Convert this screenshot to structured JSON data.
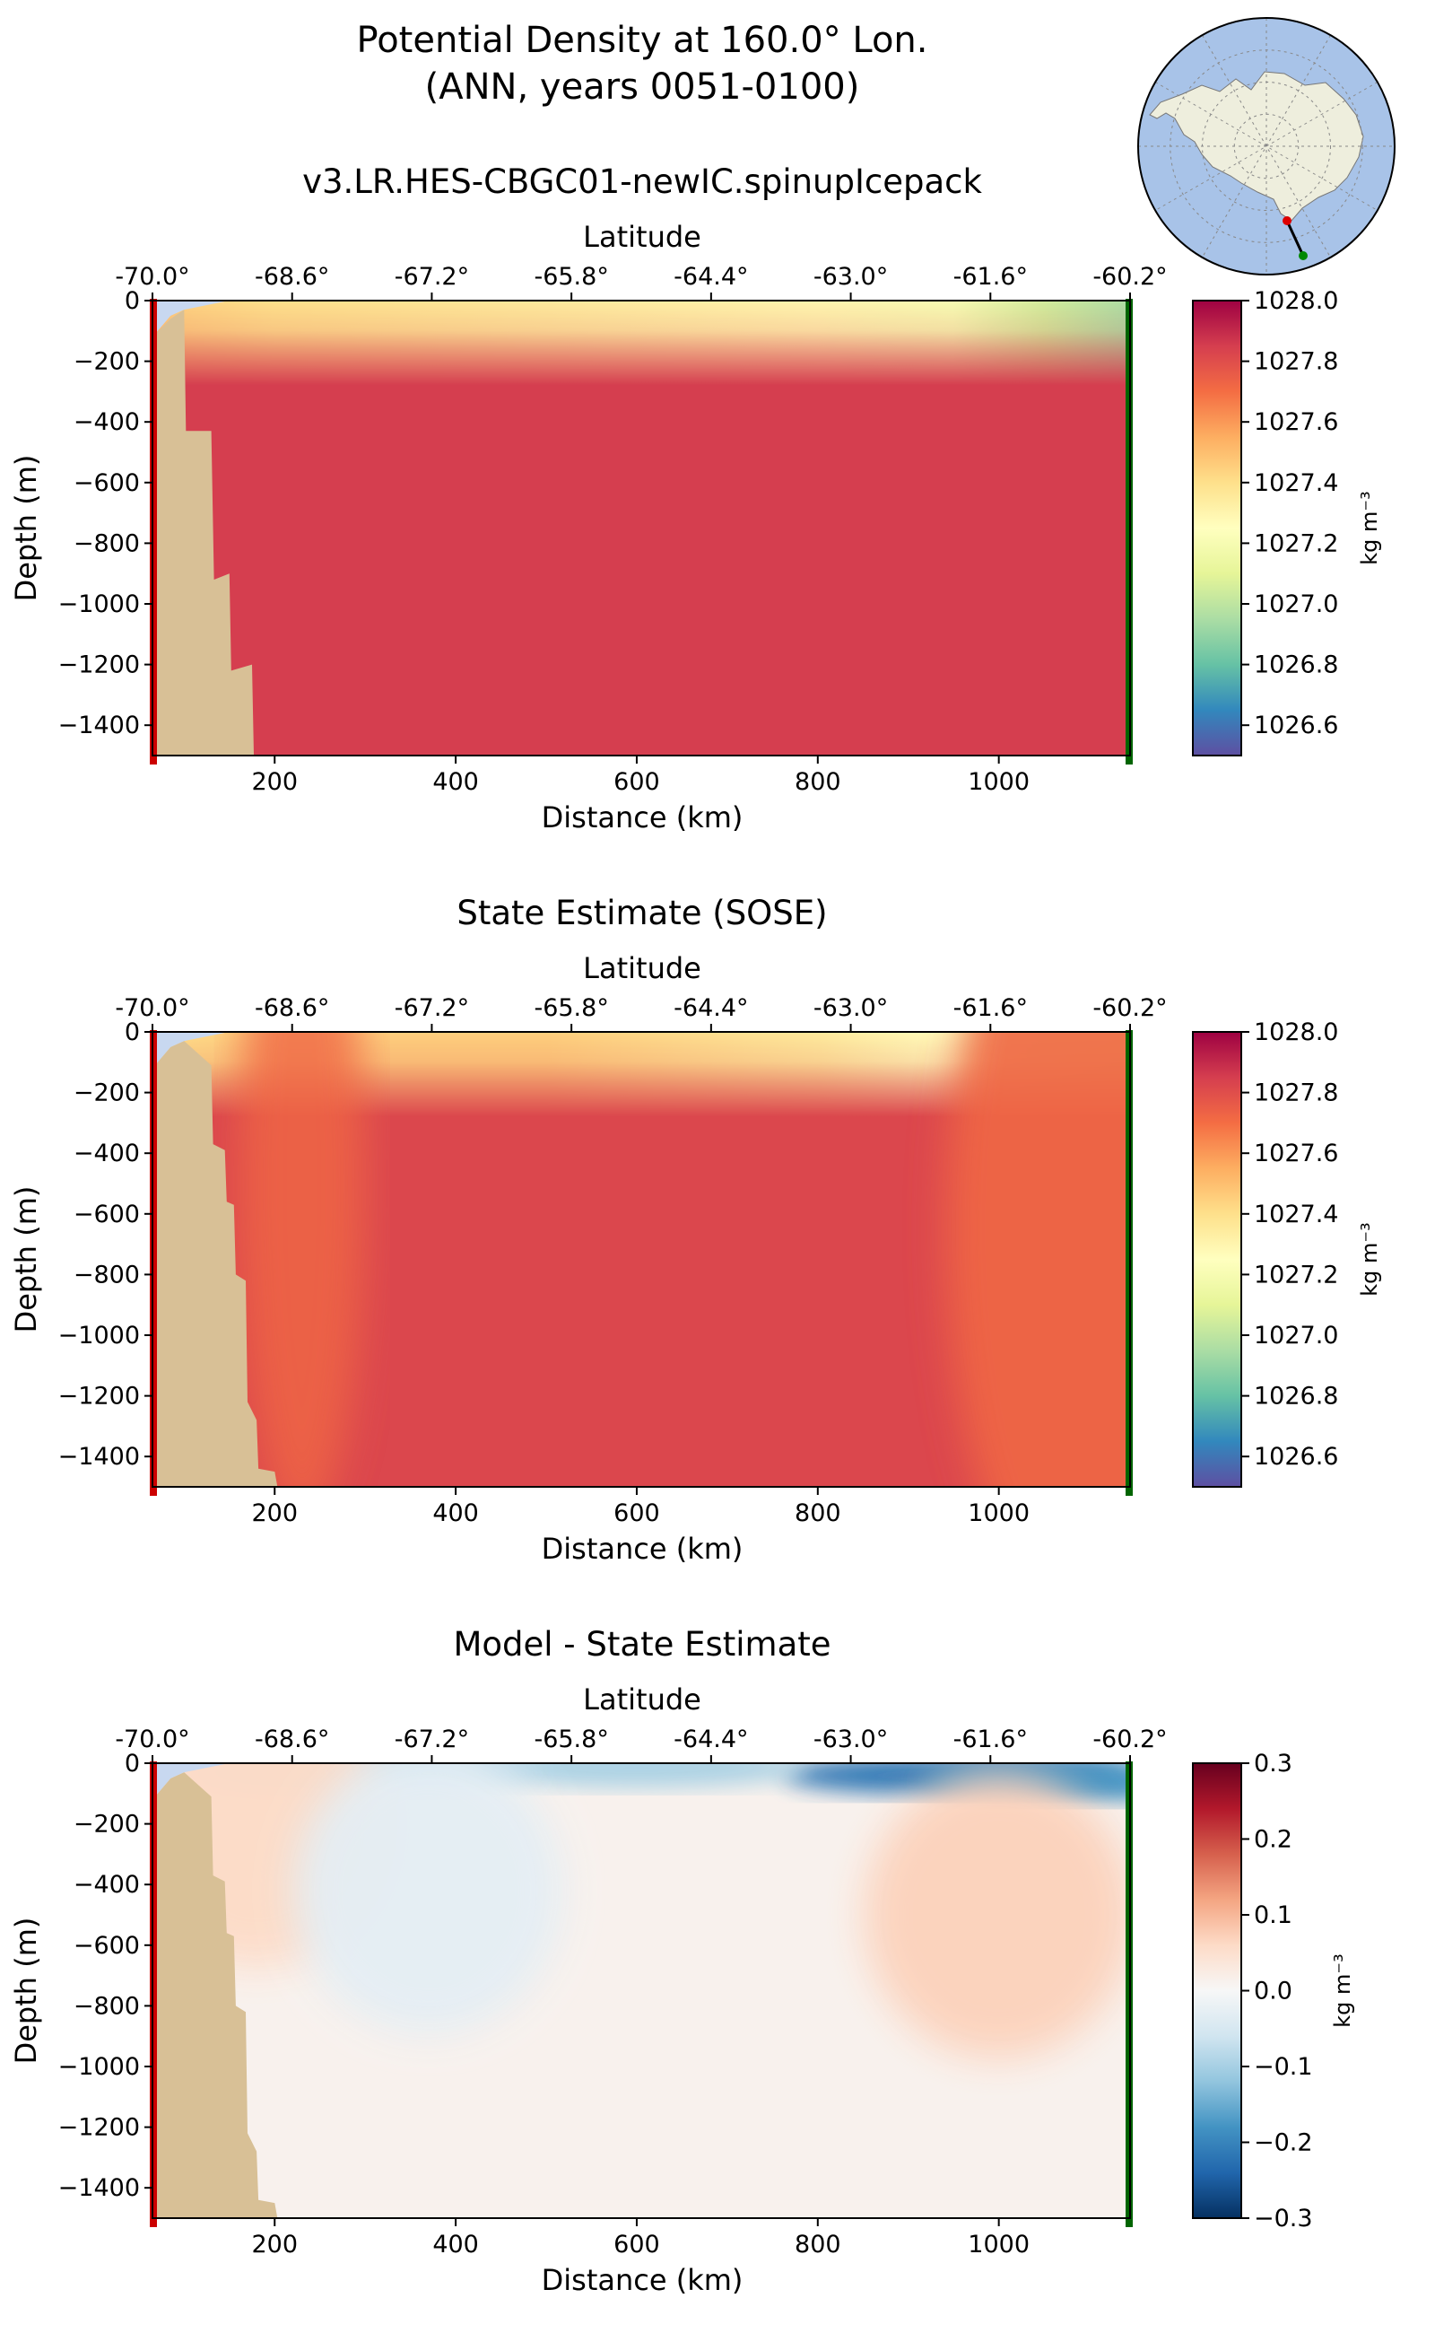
{
  "figure": {
    "title_line1": "Potential Density at 160.0° Lon.",
    "title_line2": "(ANN, years 0051-0100)"
  },
  "chart_data": [
    {
      "type": "heatmap",
      "title": "v3.LR.HES-CBGC01-newIC.spinupIcepack",
      "xlabel": "Distance (km)",
      "ylabel": "Depth (m)",
      "top_xlabel": "Latitude",
      "xlim": [
        65,
        1145
      ],
      "ylim": [
        -1500,
        0
      ],
      "x_ticks": [
        200,
        400,
        600,
        800,
        1000
      ],
      "y_ticks": [
        0,
        -200,
        -400,
        -600,
        -800,
        -1000,
        -1200,
        -1400
      ],
      "lat_ticks": [
        "-70.0°",
        "-68.6°",
        "-67.2°",
        "-65.8°",
        "-64.4°",
        "-63.0°",
        "-61.6°",
        "-60.2°"
      ],
      "colorbar": {
        "ticks": [
          "1028.0",
          "1027.8",
          "1027.6",
          "1027.4",
          "1027.2",
          "1027.0",
          "1026.8",
          "1026.6"
        ],
        "min": 1026.5,
        "max": 1028.0,
        "units": "kg m⁻³",
        "colormap": "Spectral_r"
      },
      "shelf_profile": [
        [
          65,
          -1500
        ],
        [
          65,
          -120
        ],
        [
          85,
          -60
        ],
        [
          100,
          -30
        ],
        [
          102,
          -430
        ],
        [
          130,
          -430
        ],
        [
          133,
          -920
        ],
        [
          150,
          -900
        ],
        [
          152,
          -1220
        ],
        [
          175,
          -1200
        ],
        [
          177,
          -1500
        ]
      ],
      "surface_density": [
        [
          65,
          1027.45
        ],
        [
          200,
          1027.4
        ],
        [
          500,
          1027.35
        ],
        [
          800,
          1027.3
        ],
        [
          950,
          1027.2
        ],
        [
          1050,
          1027.05
        ],
        [
          1145,
          1026.95
        ]
      ],
      "deep_density": 1027.85,
      "left_section_color": "#cc0000",
      "right_section_color": "#006400"
    },
    {
      "type": "heatmap",
      "title": "State Estimate (SOSE)",
      "xlabel": "Distance (km)",
      "ylabel": "Depth (m)",
      "top_xlabel": "Latitude",
      "xlim": [
        65,
        1145
      ],
      "ylim": [
        -1500,
        0
      ],
      "x_ticks": [
        200,
        400,
        600,
        800,
        1000
      ],
      "y_ticks": [
        0,
        -200,
        -400,
        -600,
        -800,
        -1000,
        -1200,
        -1400
      ],
      "lat_ticks": [
        "-70.0°",
        "-68.6°",
        "-67.2°",
        "-65.8°",
        "-64.4°",
        "-63.0°",
        "-61.6°",
        "-60.2°"
      ],
      "colorbar": {
        "ticks": [
          "1028.0",
          "1027.8",
          "1027.6",
          "1027.4",
          "1027.2",
          "1027.0",
          "1026.8",
          "1026.6"
        ],
        "min": 1026.5,
        "max": 1028.0,
        "units": "kg m⁻³",
        "colormap": "Spectral_r"
      },
      "shelf_profile": [
        [
          65,
          -1500
        ],
        [
          65,
          -120
        ],
        [
          85,
          -50
        ],
        [
          100,
          -30
        ],
        [
          130,
          -110
        ],
        [
          132,
          -370
        ],
        [
          145,
          -390
        ],
        [
          147,
          -560
        ],
        [
          155,
          -570
        ],
        [
          157,
          -800
        ],
        [
          168,
          -820
        ],
        [
          170,
          -1220
        ],
        [
          180,
          -1280
        ],
        [
          182,
          -1440
        ],
        [
          200,
          -1450
        ],
        [
          203,
          -1500
        ]
      ],
      "surface_density": [
        [
          65,
          1027.4
        ],
        [
          200,
          1027.45
        ],
        [
          500,
          1027.45
        ],
        [
          800,
          1027.35
        ],
        [
          950,
          1027.25
        ],
        [
          1050,
          1027.15
        ],
        [
          1145,
          1027.1
        ]
      ],
      "deep_density": 1027.82,
      "left_section_color": "#cc0000",
      "right_section_color": "#006400"
    },
    {
      "type": "heatmap",
      "title": "Model - State Estimate",
      "xlabel": "Distance (km)",
      "ylabel": "Depth (m)",
      "top_xlabel": "Latitude",
      "xlim": [
        65,
        1145
      ],
      "ylim": [
        -1500,
        0
      ],
      "x_ticks": [
        200,
        400,
        600,
        800,
        1000
      ],
      "y_ticks": [
        0,
        -200,
        -400,
        -600,
        -800,
        -1000,
        -1200,
        -1400
      ],
      "lat_ticks": [
        "-70.0°",
        "-68.6°",
        "-67.2°",
        "-65.8°",
        "-64.4°",
        "-63.0°",
        "-61.6°",
        "-60.2°"
      ],
      "colorbar": {
        "ticks": [
          "0.3",
          "0.2",
          "0.1",
          "0.0",
          "−0.1",
          "−0.2",
          "−0.3"
        ],
        "min": -0.3,
        "max": 0.3,
        "units": "kg m⁻³",
        "colormap": "RdBu_r"
      },
      "shelf_profile": [
        [
          65,
          -1500
        ],
        [
          65,
          -120
        ],
        [
          85,
          -50
        ],
        [
          100,
          -30
        ],
        [
          130,
          -110
        ],
        [
          132,
          -370
        ],
        [
          145,
          -390
        ],
        [
          147,
          -560
        ],
        [
          155,
          -570
        ],
        [
          157,
          -800
        ],
        [
          168,
          -820
        ],
        [
          170,
          -1220
        ],
        [
          180,
          -1280
        ],
        [
          182,
          -1440
        ],
        [
          200,
          -1450
        ],
        [
          203,
          -1500
        ]
      ],
      "features": [
        {
          "x": 950,
          "depth": -40,
          "value": -0.22
        },
        {
          "x": 1100,
          "depth": -60,
          "value": -0.18
        },
        {
          "x": 600,
          "depth": -15,
          "value": -0.1
        },
        {
          "x": 300,
          "depth": -30,
          "value": -0.08
        },
        {
          "x": 180,
          "depth": -200,
          "value": 0.06
        },
        {
          "x": 1000,
          "depth": -500,
          "value": 0.07
        },
        {
          "x": 370,
          "depth": -420,
          "value": -0.03
        }
      ],
      "left_section_color": "#cc0000",
      "right_section_color": "#006400"
    }
  ],
  "inset_map": {
    "description_icon": "antarctica-polar-map",
    "ocean_color": "#a8c3e8",
    "land_color": "#eeeedd",
    "start_marker_color": "#dd0000",
    "end_marker_color": "#008800"
  }
}
